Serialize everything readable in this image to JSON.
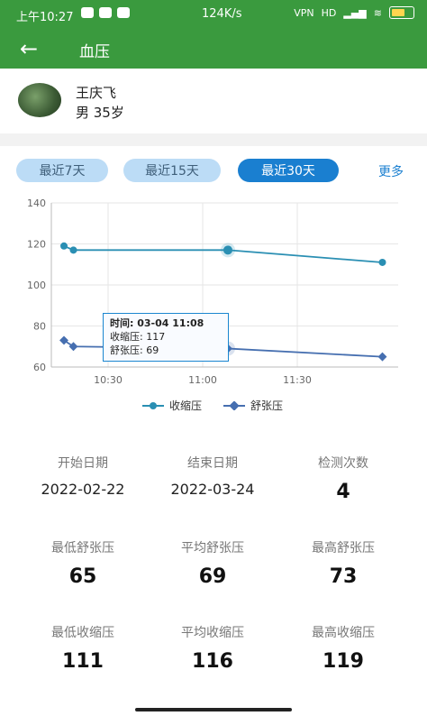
{
  "status": {
    "time": "上午10:27",
    "network": "124K/s",
    "vpn": "VPN",
    "network_type": "HD"
  },
  "appbar": {
    "title": "血压"
  },
  "profile": {
    "name": "王庆飞",
    "gender_age": "男 35岁"
  },
  "ranges": [
    {
      "label": "最近7天",
      "active": false
    },
    {
      "label": "最近15天",
      "active": false
    },
    {
      "label": "最近30天",
      "active": true
    }
  ],
  "more_label": "更多",
  "chart_data": {
    "type": "line",
    "x_ticks": [
      "10:30",
      "11:00",
      "11:30"
    ],
    "ylim": [
      60,
      140
    ],
    "y_ticks": [
      60,
      80,
      100,
      120,
      140
    ],
    "series": [
      {
        "name": "收缩压",
        "color": "#2a8fb3",
        "points": [
          [
            "10:16",
            119
          ],
          [
            "10:19",
            117
          ],
          [
            "11:08",
            117
          ],
          [
            "11:57",
            111
          ]
        ]
      },
      {
        "name": "舒张压",
        "color": "#466fb0",
        "points": [
          [
            "10:16",
            73
          ],
          [
            "10:19",
            70
          ],
          [
            "11:08",
            69
          ],
          [
            "11:57",
            65
          ]
        ]
      }
    ],
    "tooltip": {
      "time_label": "时间:",
      "time": "03-04 11:08",
      "sys_label": "收缩压:",
      "sys": "117",
      "dia_label": "舒张压:",
      "dia": "69"
    }
  },
  "stats": [
    {
      "label": "开始日期",
      "value": "2022-02-22"
    },
    {
      "label": "结束日期",
      "value": "2022-03-24"
    },
    {
      "label": "检测次数",
      "value": "4"
    },
    {
      "label": "最低舒张压",
      "value": "65"
    },
    {
      "label": "平均舒张压",
      "value": "69"
    },
    {
      "label": "最高舒张压",
      "value": "73"
    },
    {
      "label": "最低收缩压",
      "value": "111"
    },
    {
      "label": "平均收缩压",
      "value": "116"
    },
    {
      "label": "最高收缩压",
      "value": "119"
    }
  ]
}
